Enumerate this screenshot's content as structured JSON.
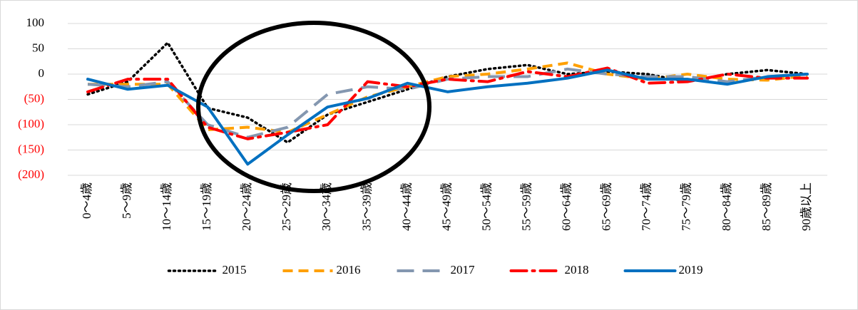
{
  "chart_data": {
    "type": "line",
    "categories": [
      "0～4歳",
      "5～9歳",
      "10～14歳",
      "15～19歳",
      "20～24歳",
      "25～29歳",
      "30～34歳",
      "35～39歳",
      "40～44歳",
      "45～49歳",
      "50～54歳",
      "55～59歳",
      "60～64歳",
      "65～69歳",
      "70～74歳",
      "75～79歳",
      "80～84歳",
      "85～89歳",
      "90歳以上"
    ],
    "series": [
      {
        "name": "2015",
        "color": "#000000",
        "style": "dotted",
        "values": [
          -40,
          -15,
          62,
          -67,
          -86,
          -135,
          -80,
          -55,
          -30,
          -5,
          10,
          18,
          0,
          5,
          0,
          -15,
          0,
          8,
          0
        ]
      },
      {
        "name": "2016",
        "color": "#ffa000",
        "style": "dashed",
        "values": [
          -20,
          -20,
          -20,
          -110,
          -105,
          -115,
          -80,
          -45,
          -25,
          -5,
          0,
          10,
          22,
          0,
          -10,
          0,
          -10,
          -12,
          -3
        ]
      },
      {
        "name": "2017",
        "color": "#8497b0",
        "style": "longdash",
        "values": [
          -20,
          -25,
          -15,
          -100,
          -125,
          -105,
          -40,
          -25,
          -30,
          -10,
          -5,
          -5,
          10,
          0,
          -5,
          -5,
          -15,
          -5,
          0
        ]
      },
      {
        "name": "2018",
        "color": "#ff0000",
        "style": "dashdot",
        "values": [
          -35,
          -10,
          -10,
          -105,
          -128,
          -115,
          -100,
          -15,
          -25,
          -10,
          -15,
          5,
          -5,
          12,
          -18,
          -15,
          0,
          -8,
          -8
        ]
      },
      {
        "name": "2019",
        "color": "#0070c0",
        "style": "solid",
        "values": [
          -10,
          -30,
          -22,
          -65,
          -178,
          -120,
          -65,
          -48,
          -18,
          -35,
          -25,
          -18,
          -8,
          8,
          -10,
          -10,
          -20,
          -5,
          0
        ]
      }
    ],
    "ylim": [
      -200,
      100
    ],
    "yticks": [
      100,
      50,
      0,
      {
        "value": -50,
        "label": "(50)"
      },
      {
        "value": -100,
        "label": "(100)"
      },
      {
        "value": -150,
        "label": "(150)"
      },
      {
        "value": -200,
        "label": "(200)"
      }
    ],
    "negative_tick_color": "#ff0000",
    "grid": true,
    "legend": "bottom"
  }
}
